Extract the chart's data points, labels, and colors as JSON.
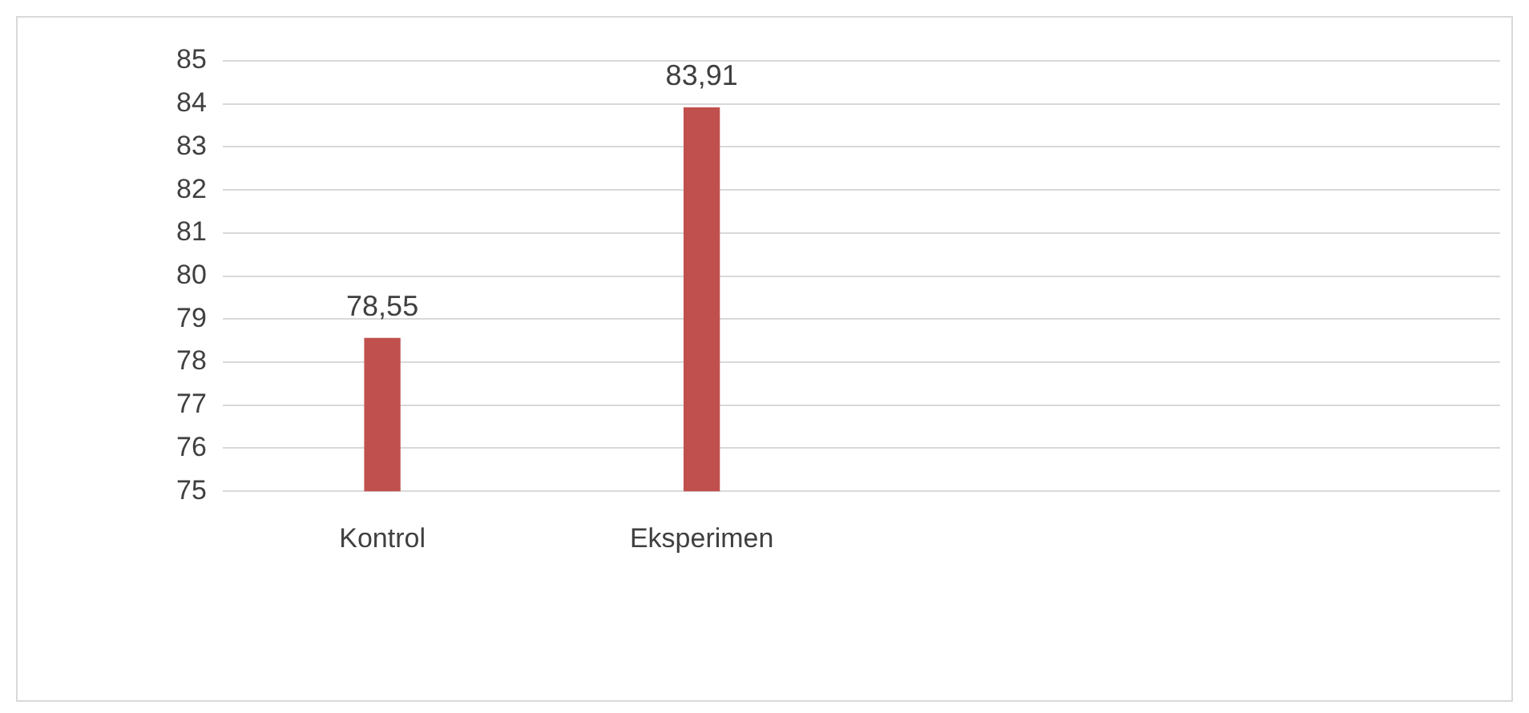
{
  "chart_data": {
    "type": "bar",
    "categories": [
      "Kontrol",
      "Eksperimen",
      null,
      null
    ],
    "values": [
      78.55,
      83.91,
      null,
      null
    ],
    "color": "#c0504d",
    "value_labels": [
      "78,55",
      "83,91",
      null,
      null
    ],
    "ylim": [
      75,
      85
    ],
    "yticks": [
      75,
      76,
      77,
      78,
      79,
      80,
      81,
      82,
      83,
      84,
      85
    ],
    "grid": "y",
    "legend": false
  }
}
